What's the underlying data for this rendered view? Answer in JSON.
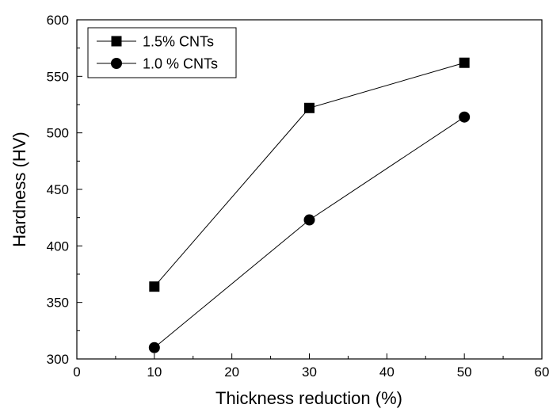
{
  "chart_data": {
    "type": "line",
    "xlabel": "Thickness reduction (%)",
    "ylabel": "Hardness (HV)",
    "xlim": [
      0,
      60
    ],
    "ylim": [
      300,
      600
    ],
    "x_ticks": [
      0,
      10,
      20,
      30,
      40,
      50,
      60
    ],
    "y_ticks": [
      300,
      350,
      400,
      450,
      500,
      550,
      600
    ],
    "x_tick_labels": [
      "0",
      "10",
      "20",
      "30",
      "40",
      "50",
      "60"
    ],
    "y_tick_labels": [
      "300",
      "350",
      "400",
      "450",
      "500",
      "550",
      "600"
    ],
    "grid": false,
    "legend_position": "top-left",
    "x": [
      10,
      30,
      50
    ],
    "series": [
      {
        "name": "1.5% CNTs",
        "marker": "square",
        "values": [
          364,
          522,
          562
        ]
      },
      {
        "name": "1.0 % CNTs",
        "marker": "circle",
        "values": [
          310,
          423,
          514
        ]
      }
    ],
    "colors": {
      "axis": "#000000",
      "line": "#000000",
      "marker": "#000000"
    }
  }
}
